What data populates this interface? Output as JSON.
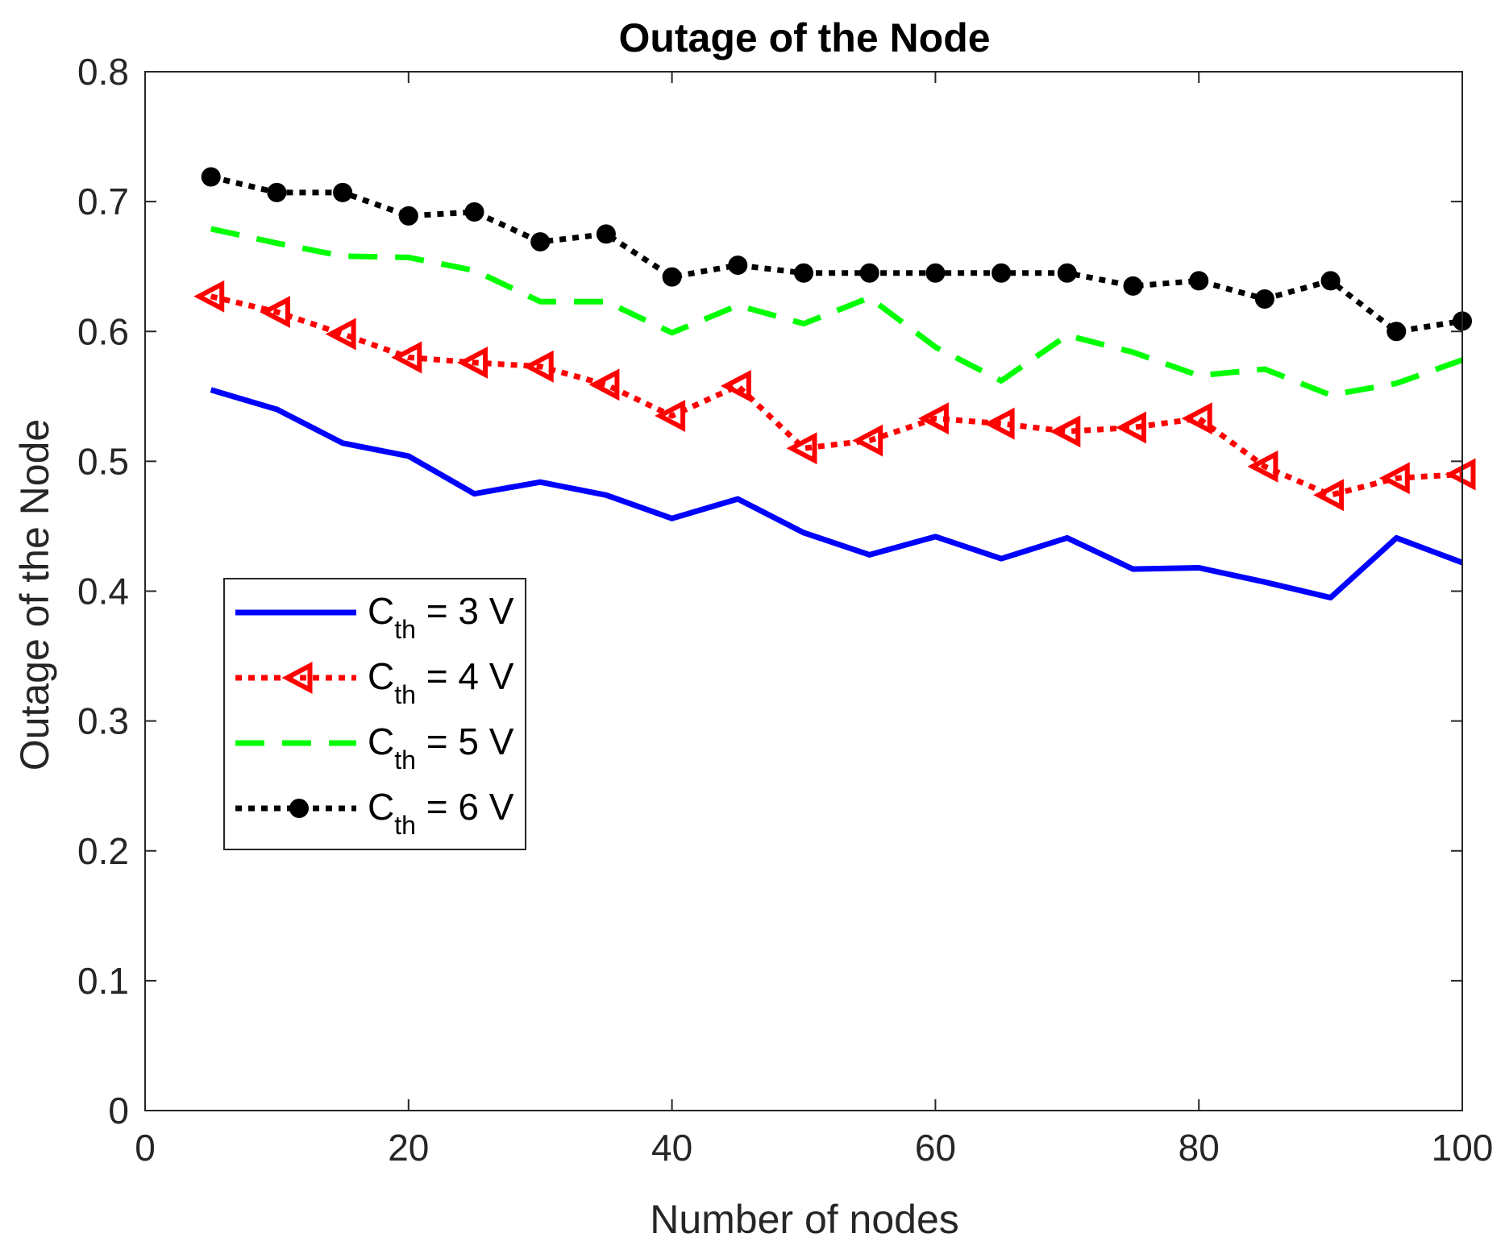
{
  "chart_data": {
    "type": "line",
    "title": "Outage of the Node",
    "xlabel": "Number of nodes",
    "ylabel": "Outage of the Node",
    "xlim": [
      0,
      100
    ],
    "ylim": [
      0,
      0.8
    ],
    "xticks": [
      0,
      20,
      40,
      60,
      80,
      100
    ],
    "yticks": [
      0,
      0.1,
      0.2,
      0.3,
      0.4,
      0.5,
      0.6,
      0.7,
      0.8
    ],
    "xtick_labels": [
      "0",
      "20",
      "40",
      "60",
      "80",
      "100"
    ],
    "ytick_labels": [
      "0",
      "0.1",
      "0.2",
      "0.3",
      "0.4",
      "0.5",
      "0.6",
      "0.7",
      "0.8"
    ],
    "grid": false,
    "legend_position": "middle-left",
    "x": [
      5,
      10,
      15,
      20,
      25,
      30,
      35,
      40,
      45,
      50,
      55,
      60,
      65,
      70,
      75,
      80,
      85,
      90,
      95,
      100
    ],
    "series": [
      {
        "name": "C_th = 3 V",
        "legend": {
          "base": "C",
          "sub": "th",
          "rest": " = 3 V"
        },
        "color": "#0000ff",
        "line_style": "solid",
        "marker": "none",
        "values": [
          0.555,
          0.54,
          0.514,
          0.504,
          0.475,
          0.484,
          0.474,
          0.456,
          0.471,
          0.445,
          0.428,
          0.442,
          0.425,
          0.441,
          0.417,
          0.418,
          0.407,
          0.395,
          0.441,
          0.422
        ]
      },
      {
        "name": "C_th = 4 V",
        "legend": {
          "base": "C",
          "sub": "th",
          "rest": " = 4 V"
        },
        "color": "#ff0000",
        "line_style": "dotted",
        "marker": "left-triangle",
        "values": [
          0.627,
          0.615,
          0.598,
          0.58,
          0.576,
          0.573,
          0.559,
          0.535,
          0.558,
          0.51,
          0.516,
          0.533,
          0.529,
          0.523,
          0.526,
          0.533,
          0.496,
          0.474,
          0.487,
          0.49
        ]
      },
      {
        "name": "C_th = 5 V",
        "legend": {
          "base": "C",
          "sub": "th",
          "rest": " = 5 V"
        },
        "color": "#00ff00",
        "line_style": "dashed",
        "marker": "none",
        "values": [
          0.679,
          0.668,
          0.658,
          0.657,
          0.647,
          0.623,
          0.623,
          0.599,
          0.62,
          0.606,
          0.626,
          0.588,
          0.562,
          0.597,
          0.584,
          0.566,
          0.571,
          0.551,
          0.56,
          0.578
        ]
      },
      {
        "name": "C_th = 6 V",
        "legend": {
          "base": "C",
          "sub": "th",
          "rest": " = 6 V"
        },
        "color": "#000000",
        "line_style": "dotted",
        "marker": "circle",
        "values": [
          0.719,
          0.707,
          0.707,
          0.689,
          0.692,
          0.669,
          0.675,
          0.642,
          0.651,
          0.645,
          0.645,
          0.645,
          0.645,
          0.645,
          0.635,
          0.639,
          0.625,
          0.639,
          0.6,
          0.608
        ]
      }
    ]
  }
}
